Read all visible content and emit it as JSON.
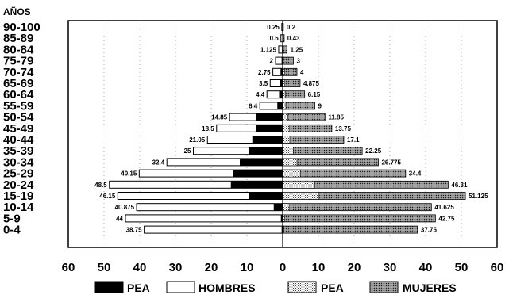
{
  "chart_data": {
    "type": "bar",
    "subtype": "population-pyramid",
    "title": "",
    "ytitle": "AÑOS",
    "xlim": [
      -60,
      60
    ],
    "ticks": [
      60,
      50,
      40,
      30,
      20,
      10,
      0,
      10,
      20,
      30,
      40,
      50,
      60
    ],
    "grid": "vertical-dotted",
    "legend_position": "bottom",
    "categories": [
      "90-100",
      "85-89",
      "80-84",
      "75-79",
      "70-74",
      "65-69",
      "60-64",
      "55-59",
      "50-54",
      "45-49",
      "40-44",
      "35-39",
      "30-34",
      "25-29",
      "20-24",
      "15-19",
      "10-14",
      "5-9",
      "0-4"
    ],
    "series": [
      {
        "name": "PEA",
        "side": "left",
        "values": [
          0.1,
          0.1,
          0.2,
          0.3,
          0.6,
          0.8,
          1.0,
          1.5,
          7.5,
          7.5,
          8.5,
          9.5,
          12,
          14,
          14.5,
          9.5,
          2.5,
          0.5,
          0.3
        ]
      },
      {
        "name": "HOMBRES",
        "side": "left",
        "values": [
          0.25,
          0.5,
          1.125,
          2,
          2.75,
          3.5,
          4.4,
          6.4,
          14.85,
          18.5,
          21.05,
          25,
          32.4,
          40.15,
          48.5,
          46.15,
          40.875,
          44,
          38.75
        ]
      },
      {
        "name": "PEA",
        "side": "right",
        "values": [
          0.05,
          0.1,
          0.2,
          0.4,
          0.5,
          0.6,
          0.7,
          0.9,
          1.5,
          1.8,
          2.0,
          3.0,
          4.0,
          5.0,
          9.0,
          10.0,
          1.8,
          0.5,
          0.3
        ]
      },
      {
        "name": "MUJERES",
        "side": "right",
        "values": [
          0.2,
          0.43,
          1.25,
          3,
          4,
          4.875,
          6.15,
          9,
          11.85,
          13.75,
          17.1,
          22.25,
          26.775,
          34.4,
          46.31,
          51.125,
          41.625,
          42.75,
          37.75
        ]
      }
    ],
    "value_labels_left": [
      "0.25",
      "0.5",
      "1.125",
      "2",
      "2.75",
      "3.5",
      "4.4",
      "6.4",
      "14.85",
      "18.5",
      "21.05",
      "25",
      "32.4",
      "40.15",
      "48.5",
      "46.15",
      "40.875",
      "44",
      "38.75"
    ],
    "value_labels_right": [
      "0.2",
      "0.43",
      "1.25",
      "3",
      "4",
      "4.875",
      "6.15",
      "9",
      "11.85",
      "13.75",
      "17.1",
      "22.25",
      "26.775",
      "34.4",
      "46.31",
      "51.125",
      "41.625",
      "42.75",
      "37.75"
    ]
  },
  "legend": [
    {
      "label": "PEA",
      "pattern": "black"
    },
    {
      "label": "HOMBRES",
      "pattern": "white"
    },
    {
      "label": "PEA",
      "pattern": "dots"
    },
    {
      "label": "MUJERES",
      "pattern": "dense"
    }
  ]
}
